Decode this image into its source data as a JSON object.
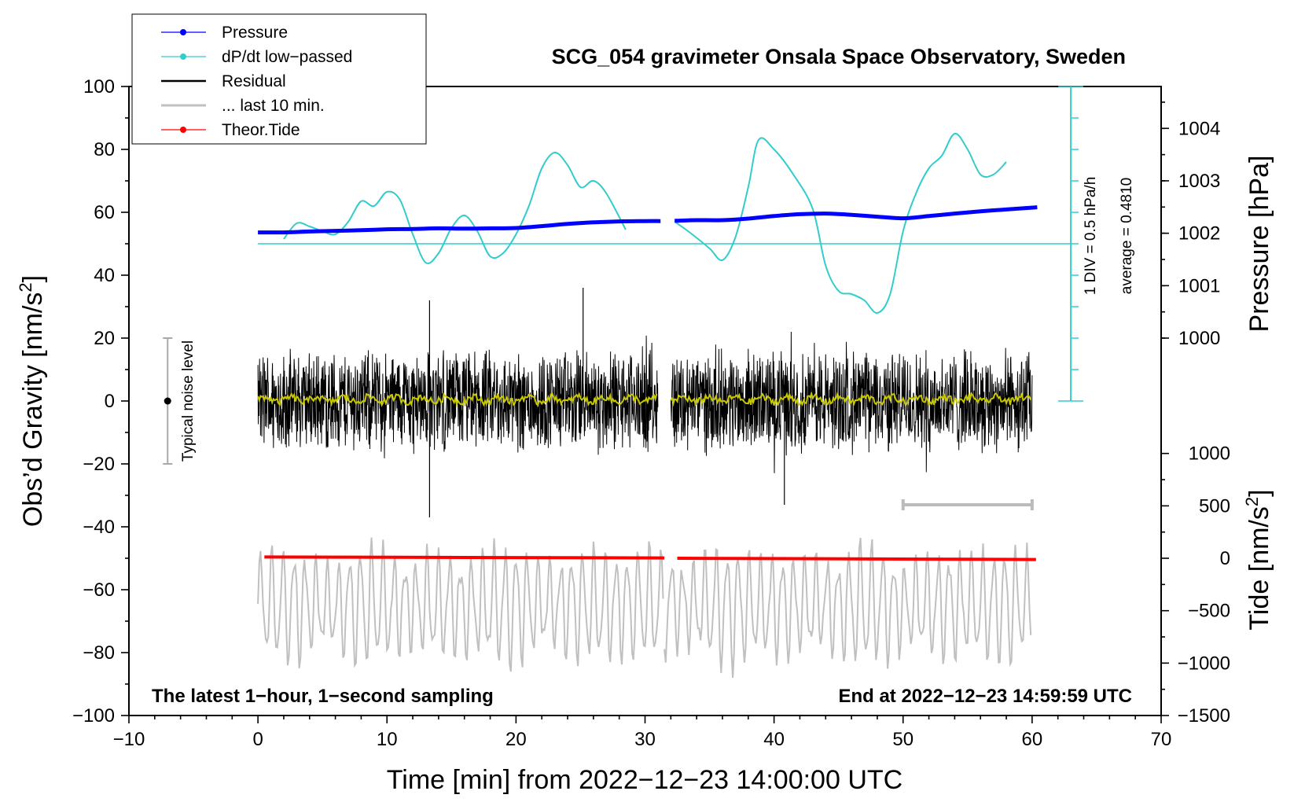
{
  "chart_data": {
    "type": "line",
    "title": "SCG_054 gravimeter Onsala Space Observatory, Sweden",
    "xlabel": "Time [min] from 2022−12−23 14:00:00 UTC",
    "xlim": [
      -10,
      70
    ],
    "xticks": [
      -10,
      0,
      10,
      20,
      30,
      40,
      50,
      60,
      70
    ],
    "xtick_labels": [
      "−10",
      "0",
      "10",
      "20",
      "30",
      "40",
      "50",
      "60",
      "70"
    ],
    "left_axis": {
      "label_prefix": "Obs’d Gravity [nm/s",
      "label_sup": "2",
      "label_suffix": "]",
      "ylim": [
        -100,
        100
      ],
      "ticks": [
        -100,
        -80,
        -60,
        -40,
        -20,
        0,
        20,
        40,
        60,
        80,
        100
      ],
      "tick_labels": [
        "−100",
        "−80",
        "−60",
        "−40",
        "−20",
        "0",
        "20",
        "40",
        "60",
        "80",
        "100"
      ]
    },
    "pressure_axis": {
      "label": "Pressure [hPa]",
      "ticks": [
        1000,
        1001,
        1002,
        1003,
        1004
      ],
      "tick_labels": [
        "1000",
        "1001",
        "1002",
        "1003",
        "1004"
      ],
      "left_equivalent_of_1000": 20,
      "left_units_per_hPa": 16.67
    },
    "tide_axis": {
      "label_prefix": "Tide [nm/s",
      "label_sup": "2",
      "label_suffix": "]",
      "ticks": [
        -1500,
        -1000,
        -500,
        0,
        500,
        1000
      ],
      "tick_labels": [
        "−1500",
        "−1000",
        "−500",
        "0",
        "500",
        "1000"
      ],
      "left_equivalent_of_minus_1500": -100,
      "left_units_per_nms2": 0.03333
    },
    "legend": [
      {
        "label": "Pressure",
        "color": "#0000ff",
        "marker": true
      },
      {
        "label": "dP/dt low−passed",
        "color": "#33cccc",
        "marker": true
      },
      {
        "label": "Residual",
        "color": "#000000",
        "marker": false
      },
      {
        "label": "... last 10 min.",
        "color": "#c0c0c0",
        "marker": false
      },
      {
        "label": "Theor.Tide",
        "color": "#ff0000",
        "marker": true
      }
    ],
    "series": [
      {
        "name": "Pressure",
        "axis": "left-equivalent",
        "color": "#0000ff",
        "segments": [
          {
            "x": [
              0,
              2,
              4,
              6,
              8,
              10,
              12,
              14,
              16,
              18,
              20,
              22,
              24,
              26,
              28,
              30,
              31.2
            ],
            "y": [
              53.6,
              53.6,
              53.9,
              54.1,
              54.3,
              54.6,
              54.7,
              54.9,
              54.8,
              54.9,
              55.0,
              55.6,
              56.3,
              56.8,
              57.1,
              57.2,
              57.2
            ]
          },
          {
            "x": [
              32.3,
              34,
              36,
              38,
              40,
              42,
              44,
              46,
              48,
              50,
              52,
              54,
              56,
              58,
              60.4
            ],
            "y": [
              57.3,
              57.5,
              57.5,
              58.0,
              58.8,
              59.4,
              59.6,
              59.2,
              58.6,
              58.1,
              58.8,
              59.6,
              60.3,
              60.9,
              61.6
            ]
          }
        ]
      },
      {
        "name": "dP/dt low−passed",
        "axis": "left-equivalent",
        "color": "#33cccc",
        "segments": [
          {
            "x": [
              2,
              3,
              4,
              5,
              6,
              7,
              8,
              9,
              10,
              11,
              12,
              13,
              14,
              15,
              16,
              17,
              18,
              19,
              20,
              21,
              22,
              23,
              24,
              25,
              26,
              27,
              28.5
            ],
            "y": [
              51.5,
              56.5,
              55.5,
              54,
              53,
              57,
              63.5,
              62,
              66.5,
              64,
              53,
              44,
              47,
              55,
              59,
              54,
              46,
              47,
              53,
              62,
              74,
              79,
              75,
              68,
              70,
              66,
              54.5
            ]
          },
          {
            "x": [
              32.3,
              33.5,
              35,
              36,
              37,
              38,
              38.8,
              40,
              41.5,
              43,
              44,
              45,
              46,
              47,
              48,
              49,
              50,
              51,
              52,
              53,
              54,
              55,
              56,
              57,
              58
            ],
            "y": [
              57,
              53.5,
              48.5,
              44.8,
              52,
              68,
              83,
              80,
              72,
              61,
              43,
              35,
              34,
              32,
              28,
              34,
              54,
              66,
              74,
              78,
              85,
              80,
              72,
              72,
              76
            ]
          }
        ]
      },
      {
        "name": "Residual",
        "axis": "left",
        "color": "#000000",
        "note": "1-second residual gravity noise, roughly ±20 nm/s² around 0",
        "segments": [
          {
            "x": [
              0,
              31
            ]
          },
          {
            "x": [
              32,
              60
            ]
          }
        ],
        "amplitude": 18,
        "extremes": [
          {
            "x": 13.3,
            "y": -37
          },
          {
            "x": 25.2,
            "y": 36
          },
          {
            "x": 40.8,
            "y": -33
          },
          {
            "x": 13.3,
            "y": 32
          }
        ]
      },
      {
        "name": "Residual running mean",
        "axis": "left",
        "color": "#c8c800",
        "segments": [
          {
            "x": [
              0,
              31
            ]
          },
          {
            "x": [
              32,
              60
            ]
          }
        ],
        "level": 0.5
      },
      {
        "name": "... last 10 min.",
        "axis": "left",
        "color": "#c0c0c0",
        "segments": [
          {
            "x": [
              0,
              31.5
            ]
          },
          {
            "x": [
              31.5,
              60
            ]
          }
        ],
        "center": -65,
        "amplitude": 18
      },
      {
        "name": "Theor.Tide",
        "axis": "left",
        "color": "#ff0000",
        "segments": [
          {
            "x": [
              0.5,
              31.5
            ],
            "y": [
              -49.6,
              -49.9
            ]
          },
          {
            "x": [
              32.5,
              60.3
            ],
            "y": [
              -50.0,
              -50.4
            ]
          }
        ]
      }
    ],
    "annotations": {
      "noise_label": "Typical noise level",
      "noise_bar": {
        "x": -7,
        "y_low": -20,
        "y_high": 20,
        "center": 0
      },
      "scale_bar": {
        "x_start": 50,
        "x_end": 60,
        "y": -33
      },
      "pressure_reference_level": 50,
      "div_label": "1 DIV = 0.5 hPa/h",
      "average_label": "average = 0.4810",
      "div_scale": {
        "x": 63,
        "y_top": 100,
        "y_bottom": 0,
        "step": 10
      },
      "bottom_left_note": "The latest 1−hour, 1−second sampling",
      "bottom_right_note": "End at 2022−12−23 14:59:59 UTC"
    }
  }
}
